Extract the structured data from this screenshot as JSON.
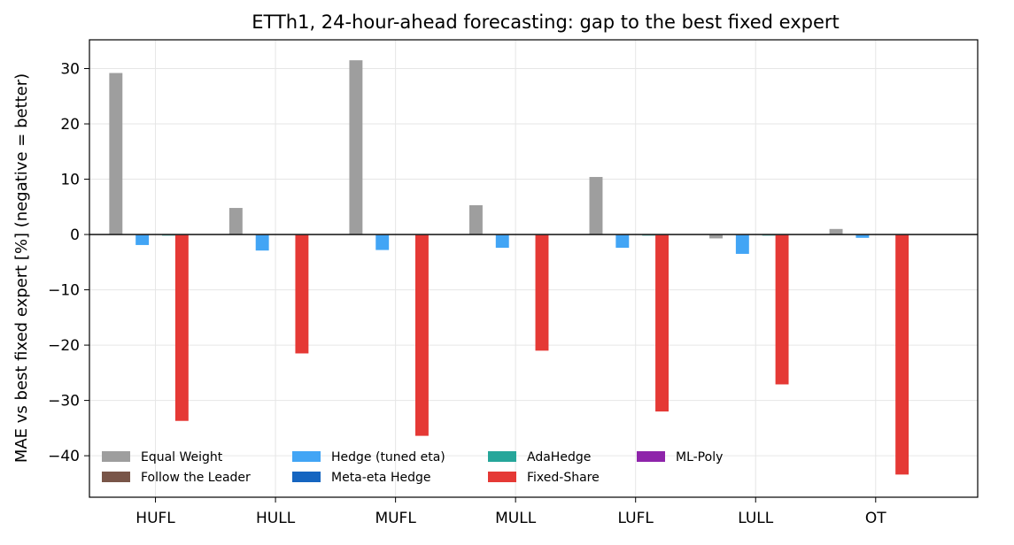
{
  "chart_data": {
    "type": "bar",
    "title": "ETTh1, 24-hour-ahead forecasting: gap to the best fixed expert",
    "xlabel": "",
    "ylabel": "MAE vs best fixed expert  [%]  (negative = better)",
    "ylim": [
      -47.5,
      35.2
    ],
    "yticks": [
      -40,
      -30,
      -20,
      -10,
      0,
      10,
      20,
      30
    ],
    "grid": true,
    "legend_position": "lower-left",
    "categories": [
      "HUFL",
      "HULL",
      "MUFL",
      "MULL",
      "LUFL",
      "LULL",
      "OT"
    ],
    "series": [
      {
        "name": "Equal Weight",
        "color": "#9e9e9e",
        "values": [
          29.2,
          4.8,
          31.5,
          5.3,
          10.4,
          -0.7,
          1.0
        ]
      },
      {
        "name": "Follow the Leader",
        "color": "#795548",
        "values": [
          0.0,
          0.0,
          0.0,
          0.0,
          0.0,
          0.0,
          0.0
        ]
      },
      {
        "name": "Hedge (tuned eta)",
        "color": "#42a5f5",
        "values": [
          -1.9,
          -2.9,
          -2.8,
          -2.4,
          -2.4,
          -3.5,
          -0.6
        ]
      },
      {
        "name": "Meta-eta Hedge",
        "color": "#1565c0",
        "values": [
          0.0,
          0.0,
          0.0,
          0.0,
          0.0,
          0.0,
          0.0
        ]
      },
      {
        "name": "AdaHedge",
        "color": "#26a69a",
        "values": [
          -0.2,
          0.0,
          0.0,
          0.0,
          -0.2,
          -0.2,
          0.0
        ]
      },
      {
        "name": "Fixed-Share",
        "color": "#e53935",
        "values": [
          -33.7,
          -21.5,
          -36.4,
          -21.0,
          -32.0,
          -27.1,
          -43.4
        ]
      },
      {
        "name": "ML-Poly",
        "color": "#8e24aa",
        "values": [
          0.0,
          0.0,
          0.0,
          0.0,
          0.0,
          0.0,
          0.0
        ]
      }
    ]
  }
}
